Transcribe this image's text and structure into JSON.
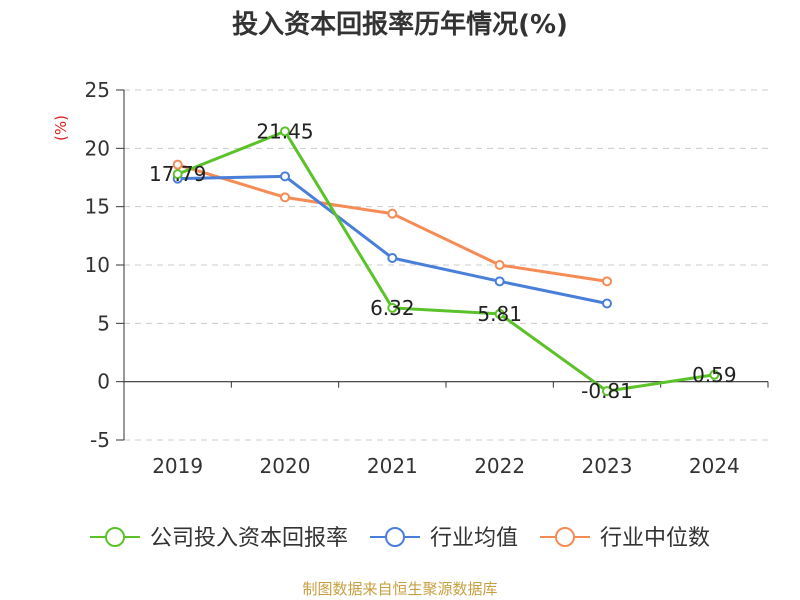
{
  "chart_data": {
    "type": "line",
    "title": "投入资本回报率历年情况(%)",
    "ylabel": "(%)",
    "categories": [
      "2019",
      "2020",
      "2021",
      "2022",
      "2023",
      "2024"
    ],
    "ylim": [
      -5,
      25
    ],
    "yticks": [
      -5,
      0,
      5,
      10,
      15,
      20,
      25
    ],
    "grid": true,
    "legend_position": "bottom",
    "series": [
      {
        "name": "公司投入资本回报率",
        "color": "#5cc22a",
        "values": [
          17.79,
          21.45,
          6.32,
          5.81,
          -0.81,
          0.59
        ],
        "labels": [
          "17.79",
          "21.45",
          "6.32",
          "5.81",
          "-0.81",
          "0.59"
        ]
      },
      {
        "name": "行业均值",
        "color": "#4a7fd9",
        "values": [
          17.4,
          17.6,
          10.6,
          8.6,
          6.7,
          null
        ],
        "labels": []
      },
      {
        "name": "行业中位数",
        "color": "#f58b55",
        "values": [
          18.6,
          15.8,
          14.4,
          10.0,
          8.6,
          null
        ],
        "labels": []
      }
    ]
  },
  "source": "制图数据来自恒生聚源数据库"
}
